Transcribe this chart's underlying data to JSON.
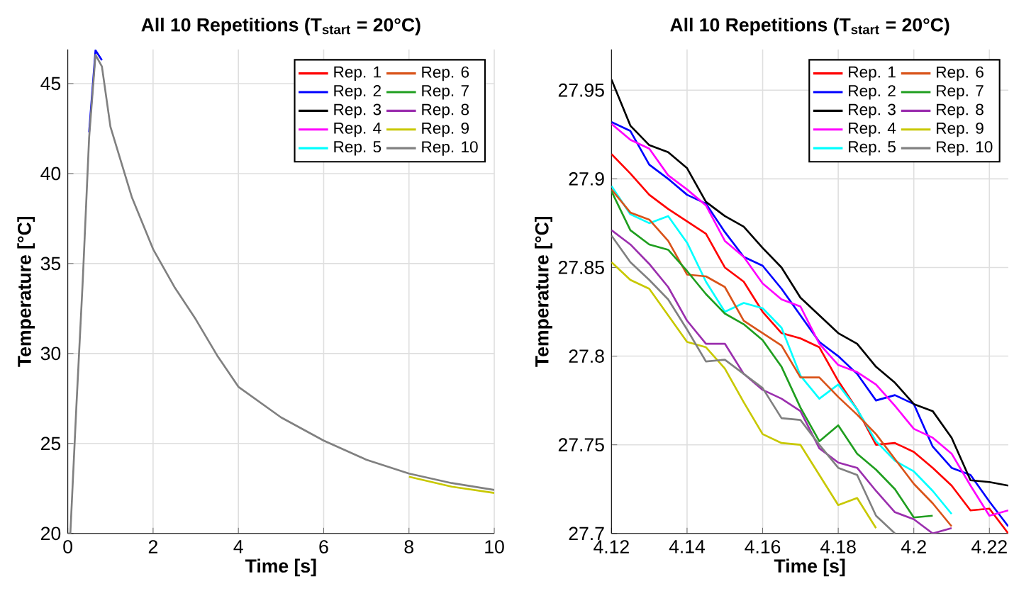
{
  "chart_data": [
    {
      "type": "line",
      "title": "All 10 Repetitions (T$_{start}$ = 20°C)",
      "xlabel": "Time [s]",
      "ylabel": "Temperature [°C]",
      "x": [
        0,
        0.06,
        0.2,
        0.35,
        0.5,
        0.65,
        0.8,
        1,
        1.5,
        2,
        2.5,
        3,
        3.5,
        4,
        5,
        6,
        7,
        8,
        9,
        10
      ],
      "series": [
        {
          "name": "Rep. 1",
          "color": "#ff0000",
          "values": [
            null,
            null,
            null,
            null,
            null,
            null,
            null,
            null,
            null,
            null,
            null,
            null,
            null,
            null,
            null,
            null,
            null,
            null,
            null,
            null
          ]
        },
        {
          "name": "Rep. 2",
          "color": "#0000ff",
          "values": [
            null,
            null,
            null,
            null,
            42.3,
            46.85,
            46.3,
            null,
            null,
            null,
            null,
            null,
            null,
            null,
            null,
            null,
            null,
            null,
            null,
            null
          ]
        },
        {
          "name": "Rep. 3",
          "color": "#000000",
          "values": [
            null,
            null,
            null,
            null,
            null,
            null,
            null,
            null,
            null,
            null,
            null,
            null,
            null,
            null,
            null,
            null,
            null,
            null,
            null,
            null
          ]
        },
        {
          "name": "Rep. 4",
          "color": "#ff00ff",
          "values": [
            null,
            null,
            null,
            null,
            null,
            null,
            null,
            null,
            null,
            null,
            null,
            null,
            null,
            null,
            null,
            null,
            null,
            null,
            null,
            null
          ]
        },
        {
          "name": "Rep. 5",
          "color": "#00ffff",
          "values": [
            null,
            null,
            null,
            null,
            null,
            null,
            null,
            null,
            null,
            null,
            null,
            null,
            null,
            null,
            null,
            null,
            null,
            null,
            null,
            null
          ]
        },
        {
          "name": "Rep. 6",
          "color": "#d95319",
          "values": [
            null,
            null,
            null,
            null,
            null,
            null,
            null,
            null,
            null,
            null,
            null,
            null,
            null,
            null,
            null,
            null,
            null,
            null,
            null,
            null
          ]
        },
        {
          "name": "Rep. 7",
          "color": "#1f9e1f",
          "values": [
            null,
            null,
            null,
            null,
            null,
            null,
            null,
            null,
            null,
            null,
            null,
            null,
            null,
            null,
            null,
            null,
            null,
            null,
            null,
            null
          ]
        },
        {
          "name": "Rep. 8",
          "color": "#9b2fae",
          "values": [
            null,
            null,
            null,
            null,
            null,
            null,
            null,
            null,
            null,
            null,
            null,
            null,
            null,
            null,
            null,
            null,
            null,
            null,
            null,
            null
          ]
        },
        {
          "name": "Rep. 9",
          "color": "#c8c800",
          "values": [
            null,
            null,
            null,
            null,
            null,
            null,
            null,
            null,
            null,
            null,
            null,
            null,
            null,
            null,
            null,
            null,
            null,
            23.15,
            22.6,
            22.25
          ]
        },
        {
          "name": "Rep. 10",
          "color": "#808080",
          "values": [
            20,
            20,
            27,
            34,
            42,
            46.6,
            45.95,
            42.6,
            38.7,
            35.8,
            33.7,
            31.9,
            29.9,
            28.15,
            26.45,
            25.16,
            24.1,
            23.33,
            22.8,
            22.42
          ]
        }
      ],
      "xlim": [
        0,
        10
      ],
      "ylim": [
        20,
        46.9
      ],
      "xticks": [
        0,
        2,
        4,
        6,
        8,
        10
      ],
      "yticks": [
        20,
        25,
        30,
        35,
        40,
        45
      ],
      "grid": true,
      "legend": "top right"
    },
    {
      "type": "line",
      "title": "All 10 Repetitions (T$_{start}$ = 20°C)",
      "xlabel": "Time [s]",
      "ylabel": "Temperature [°C]",
      "x": [
        4.12,
        4.125,
        4.13,
        4.135,
        4.14,
        4.145,
        4.15,
        4.155,
        4.16,
        4.165,
        4.17,
        4.175,
        4.18,
        4.185,
        4.19,
        4.195,
        4.2,
        4.205,
        4.21,
        4.215,
        4.22,
        4.225
      ],
      "series": [
        {
          "name": "Rep. 1",
          "color": "#ff0000",
          "values": [
            27.914,
            27.903,
            27.891,
            27.883,
            27.876,
            27.869,
            27.85,
            27.842,
            27.825,
            27.813,
            27.81,
            27.805,
            27.786,
            27.77,
            27.75,
            27.751,
            27.746,
            27.737,
            27.727,
            27.713,
            27.714,
            27.7
          ]
        },
        {
          "name": "Rep. 2",
          "color": "#0000ff",
          "values": [
            27.932,
            27.927,
            27.908,
            27.9,
            27.891,
            27.886,
            27.87,
            27.856,
            27.851,
            27.838,
            27.823,
            27.808,
            27.8,
            27.79,
            27.775,
            27.778,
            27.773,
            27.749,
            27.737,
            27.733,
            27.718,
            27.704
          ]
        },
        {
          "name": "Rep. 3",
          "color": "#000000",
          "values": [
            27.956,
            27.93,
            27.919,
            27.915,
            27.906,
            27.887,
            27.879,
            27.873,
            27.861,
            27.85,
            27.833,
            27.823,
            27.813,
            27.807,
            27.794,
            27.785,
            27.773,
            27.769,
            27.754,
            27.73,
            27.729,
            27.727
          ]
        },
        {
          "name": "Rep. 4",
          "color": "#ff00ff",
          "values": [
            27.931,
            27.922,
            27.917,
            27.902,
            27.894,
            27.885,
            27.865,
            27.856,
            27.841,
            27.832,
            27.828,
            27.807,
            27.795,
            27.791,
            27.784,
            27.772,
            27.759,
            27.754,
            27.745,
            27.727,
            27.71,
            27.713
          ]
        },
        {
          "name": "Rep. 5",
          "color": "#00ffff",
          "values": [
            27.896,
            27.88,
            27.875,
            27.879,
            27.864,
            27.842,
            27.825,
            27.83,
            27.827,
            27.816,
            27.789,
            27.776,
            27.784,
            27.77,
            27.752,
            27.741,
            27.735,
            27.724,
            27.711,
            null,
            null,
            null
          ]
        },
        {
          "name": "Rep. 6",
          "color": "#d95319",
          "values": [
            27.894,
            27.881,
            27.877,
            27.865,
            27.846,
            27.845,
            27.839,
            27.82,
            27.813,
            27.806,
            27.788,
            27.788,
            27.777,
            27.767,
            27.756,
            27.742,
            27.728,
            27.717,
            27.704,
            null,
            null,
            null
          ]
        },
        {
          "name": "Rep. 7",
          "color": "#1f9e1f",
          "values": [
            27.893,
            27.871,
            27.863,
            27.86,
            27.848,
            27.835,
            27.824,
            27.818,
            27.809,
            27.794,
            27.771,
            27.752,
            27.761,
            27.745,
            27.736,
            27.725,
            27.709,
            27.71,
            null,
            null,
            null,
            null
          ]
        },
        {
          "name": "Rep. 8",
          "color": "#9b2fae",
          "values": [
            27.871,
            27.863,
            27.852,
            27.839,
            27.82,
            27.807,
            27.807,
            27.79,
            27.781,
            27.776,
            27.769,
            27.748,
            27.74,
            27.737,
            27.724,
            27.712,
            27.708,
            27.7,
            27.703,
            null,
            null,
            null
          ]
        },
        {
          "name": "Rep. 9",
          "color": "#c8c800",
          "values": [
            27.853,
            27.843,
            27.838,
            27.823,
            27.808,
            27.805,
            27.793,
            27.774,
            27.756,
            27.751,
            27.75,
            27.733,
            27.716,
            27.72,
            27.703,
            null,
            null,
            null,
            null,
            null,
            null,
            null
          ]
        },
        {
          "name": "Rep. 10",
          "color": "#808080",
          "values": [
            27.868,
            27.853,
            27.843,
            27.832,
            27.815,
            27.797,
            27.798,
            27.79,
            27.782,
            27.765,
            27.764,
            27.75,
            27.737,
            27.733,
            27.71,
            27.7,
            null,
            null,
            null,
            null,
            null,
            null
          ]
        }
      ],
      "xlim": [
        4.12,
        4.225
      ],
      "ylim": [
        27.7,
        27.973
      ],
      "xticks": [
        4.12,
        4.14,
        4.16,
        4.18,
        4.2,
        4.22
      ],
      "yticks": [
        27.7,
        27.75,
        27.8,
        27.85,
        27.9,
        27.95
      ],
      "grid": true,
      "legend": "top right"
    }
  ]
}
